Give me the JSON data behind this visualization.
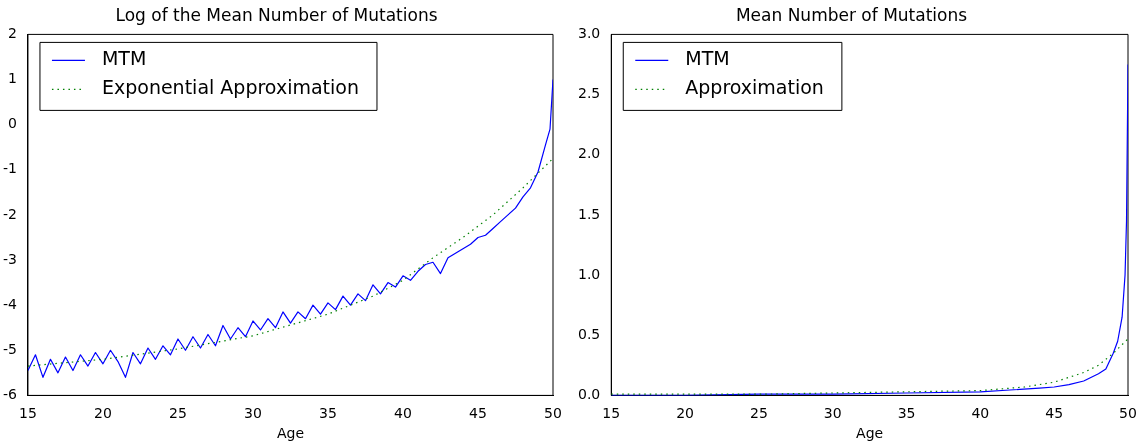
{
  "chart_data": [
    {
      "type": "line",
      "title": "Log of the Mean Number of Mutations",
      "xlabel": "Age",
      "xlim": [
        15,
        50
      ],
      "xticks": [
        15,
        20,
        25,
        30,
        35,
        40,
        45,
        50
      ],
      "ylim": [
        -6,
        2
      ],
      "yticks": [
        -6,
        -5,
        -4,
        -3,
        -2,
        -1,
        0,
        1,
        2
      ],
      "grid": false,
      "legend": "top left",
      "series": [
        {
          "name": "MTM",
          "color": "#0000ff",
          "line_style": "solid",
          "x": [
            15,
            15.5,
            16,
            16.5,
            17,
            17.5,
            18,
            18.5,
            19,
            19.5,
            20,
            20.5,
            21,
            21.5,
            22,
            22.5,
            23,
            23.5,
            24,
            24.5,
            25,
            25.5,
            26,
            26.5,
            27,
            27.5,
            28,
            28.5,
            29,
            29.5,
            30,
            30.5,
            31,
            31.5,
            32,
            32.5,
            33,
            33.5,
            34,
            34.5,
            35,
            35.5,
            36,
            36.5,
            37,
            37.5,
            38,
            38.5,
            39,
            39.5,
            40,
            40.5,
            41,
            41.5,
            42,
            42.5,
            43,
            43.5,
            44,
            44.5,
            45,
            45.5,
            46,
            46.5,
            47,
            47.5,
            48,
            48.5,
            49,
            49.5,
            49.8,
            50
          ],
          "values": [
            -5.45,
            -5.1,
            -5.6,
            -5.2,
            -5.5,
            -5.15,
            -5.45,
            -5.1,
            -5.35,
            -5.05,
            -5.3,
            -5.0,
            -5.25,
            -5.6,
            -5.05,
            -5.3,
            -4.95,
            -5.2,
            -4.9,
            -5.1,
            -4.75,
            -5.0,
            -4.7,
            -4.95,
            -4.65,
            -4.9,
            -4.45,
            -4.75,
            -4.5,
            -4.7,
            -4.35,
            -4.55,
            -4.3,
            -4.5,
            -4.15,
            -4.4,
            -4.15,
            -4.3,
            -4.0,
            -4.2,
            -3.95,
            -4.1,
            -3.8,
            -4.0,
            -3.75,
            -3.9,
            -3.55,
            -3.75,
            -3.5,
            -3.6,
            -3.35,
            -3.45,
            -3.25,
            -3.1,
            -3.05,
            -3.3,
            -2.95,
            -2.85,
            -2.75,
            -2.65,
            -2.5,
            -2.45,
            -2.3,
            -2.15,
            -2.0,
            -1.85,
            -1.6,
            -1.4,
            -1.05,
            -0.45,
            -0.1,
            1.0
          ]
        },
        {
          "name": "Exponential Approximation",
          "color": "#008000",
          "line_style": "dotted",
          "x": [
            15,
            20,
            25,
            30,
            35,
            38,
            40,
            42,
            44,
            46,
            48,
            50
          ],
          "values": [
            -5.35,
            -5.2,
            -4.97,
            -4.68,
            -4.2,
            -3.8,
            -3.45,
            -2.95,
            -2.5,
            -2.0,
            -1.4,
            -0.75
          ]
        }
      ]
    },
    {
      "type": "line",
      "title": "Mean Number of Mutations",
      "xlabel": "Age",
      "xlim": [
        15,
        50
      ],
      "xticks": [
        15,
        20,
        25,
        30,
        35,
        40,
        45,
        50
      ],
      "ylim": [
        0,
        3
      ],
      "yticks": [
        {
          "value": 0,
          "label": "0.0"
        },
        {
          "value": 0.5,
          "label": "0.5"
        },
        {
          "value": 1,
          "label": "1.0"
        },
        {
          "value": 1.5,
          "label": "1.5"
        },
        {
          "value": 2,
          "label": "2.0"
        },
        {
          "value": 2.5,
          "label": "2.5"
        },
        {
          "value": 3,
          "label": "3.0"
        }
      ],
      "grid": false,
      "legend": "top left",
      "series": [
        {
          "name": "MTM",
          "color": "#0000ff",
          "line_style": "solid",
          "x": [
            15,
            20,
            25,
            30,
            35,
            40,
            42,
            44,
            45,
            46,
            47,
            48,
            48.5,
            49,
            49.3,
            49.6,
            49.8,
            49.9,
            50
          ],
          "values": [
            0,
            0,
            0.01,
            0.01,
            0.02,
            0.03,
            0.045,
            0.06,
            0.07,
            0.09,
            0.12,
            0.18,
            0.22,
            0.35,
            0.45,
            0.65,
            1.0,
            1.45,
            2.75
          ]
        },
        {
          "name": "Approximation",
          "color": "#008000",
          "line_style": "dotted",
          "x": [
            15,
            25,
            30,
            35,
            40,
            43,
            45,
            47,
            48,
            49,
            50
          ],
          "values": [
            0.01,
            0.01,
            0.02,
            0.03,
            0.04,
            0.07,
            0.11,
            0.19,
            0.25,
            0.35,
            0.47
          ]
        }
      ]
    }
  ]
}
